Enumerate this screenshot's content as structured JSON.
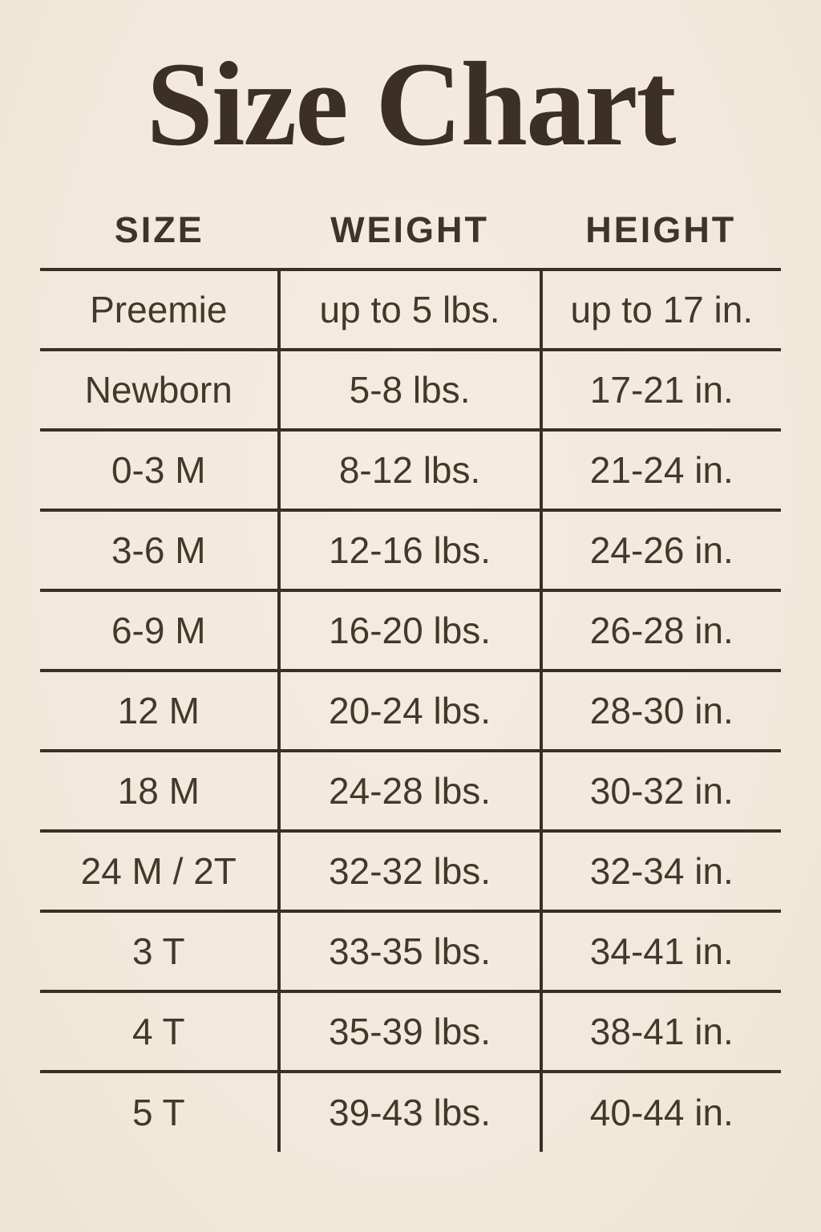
{
  "title": "Size Chart",
  "colors": {
    "background": "#f2e9dc",
    "ink": "#443829",
    "line": "#3a2f24",
    "title_ink": "#3b3023"
  },
  "chart_data": {
    "type": "table",
    "title": "Size Chart",
    "columns": [
      "SIZE",
      "WEIGHT",
      "HEIGHT"
    ],
    "rows": [
      {
        "size": "Preemie",
        "weight": "up to 5 lbs.",
        "height": "up to 17 in."
      },
      {
        "size": "Newborn",
        "weight": "5-8 lbs.",
        "height": "17-21 in."
      },
      {
        "size": "0-3 M",
        "weight": "8-12 lbs.",
        "height": "21-24 in."
      },
      {
        "size": "3-6 M",
        "weight": "12-16 lbs.",
        "height": "24-26 in."
      },
      {
        "size": "6-9 M",
        "weight": "16-20 lbs.",
        "height": "26-28 in."
      },
      {
        "size": "12 M",
        "weight": "20-24 lbs.",
        "height": "28-30 in."
      },
      {
        "size": "18 M",
        "weight": "24-28 lbs.",
        "height": "30-32 in."
      },
      {
        "size": "24 M / 2T",
        "weight": "32-32 lbs.",
        "height": "32-34 in."
      },
      {
        "size": "3 T",
        "weight": "33-35 lbs.",
        "height": "34-41 in."
      },
      {
        "size": "4 T",
        "weight": "35-39 lbs.",
        "height": "38-41 in."
      },
      {
        "size": "5 T",
        "weight": "39-43 lbs.",
        "height": "40-44 in."
      }
    ]
  }
}
